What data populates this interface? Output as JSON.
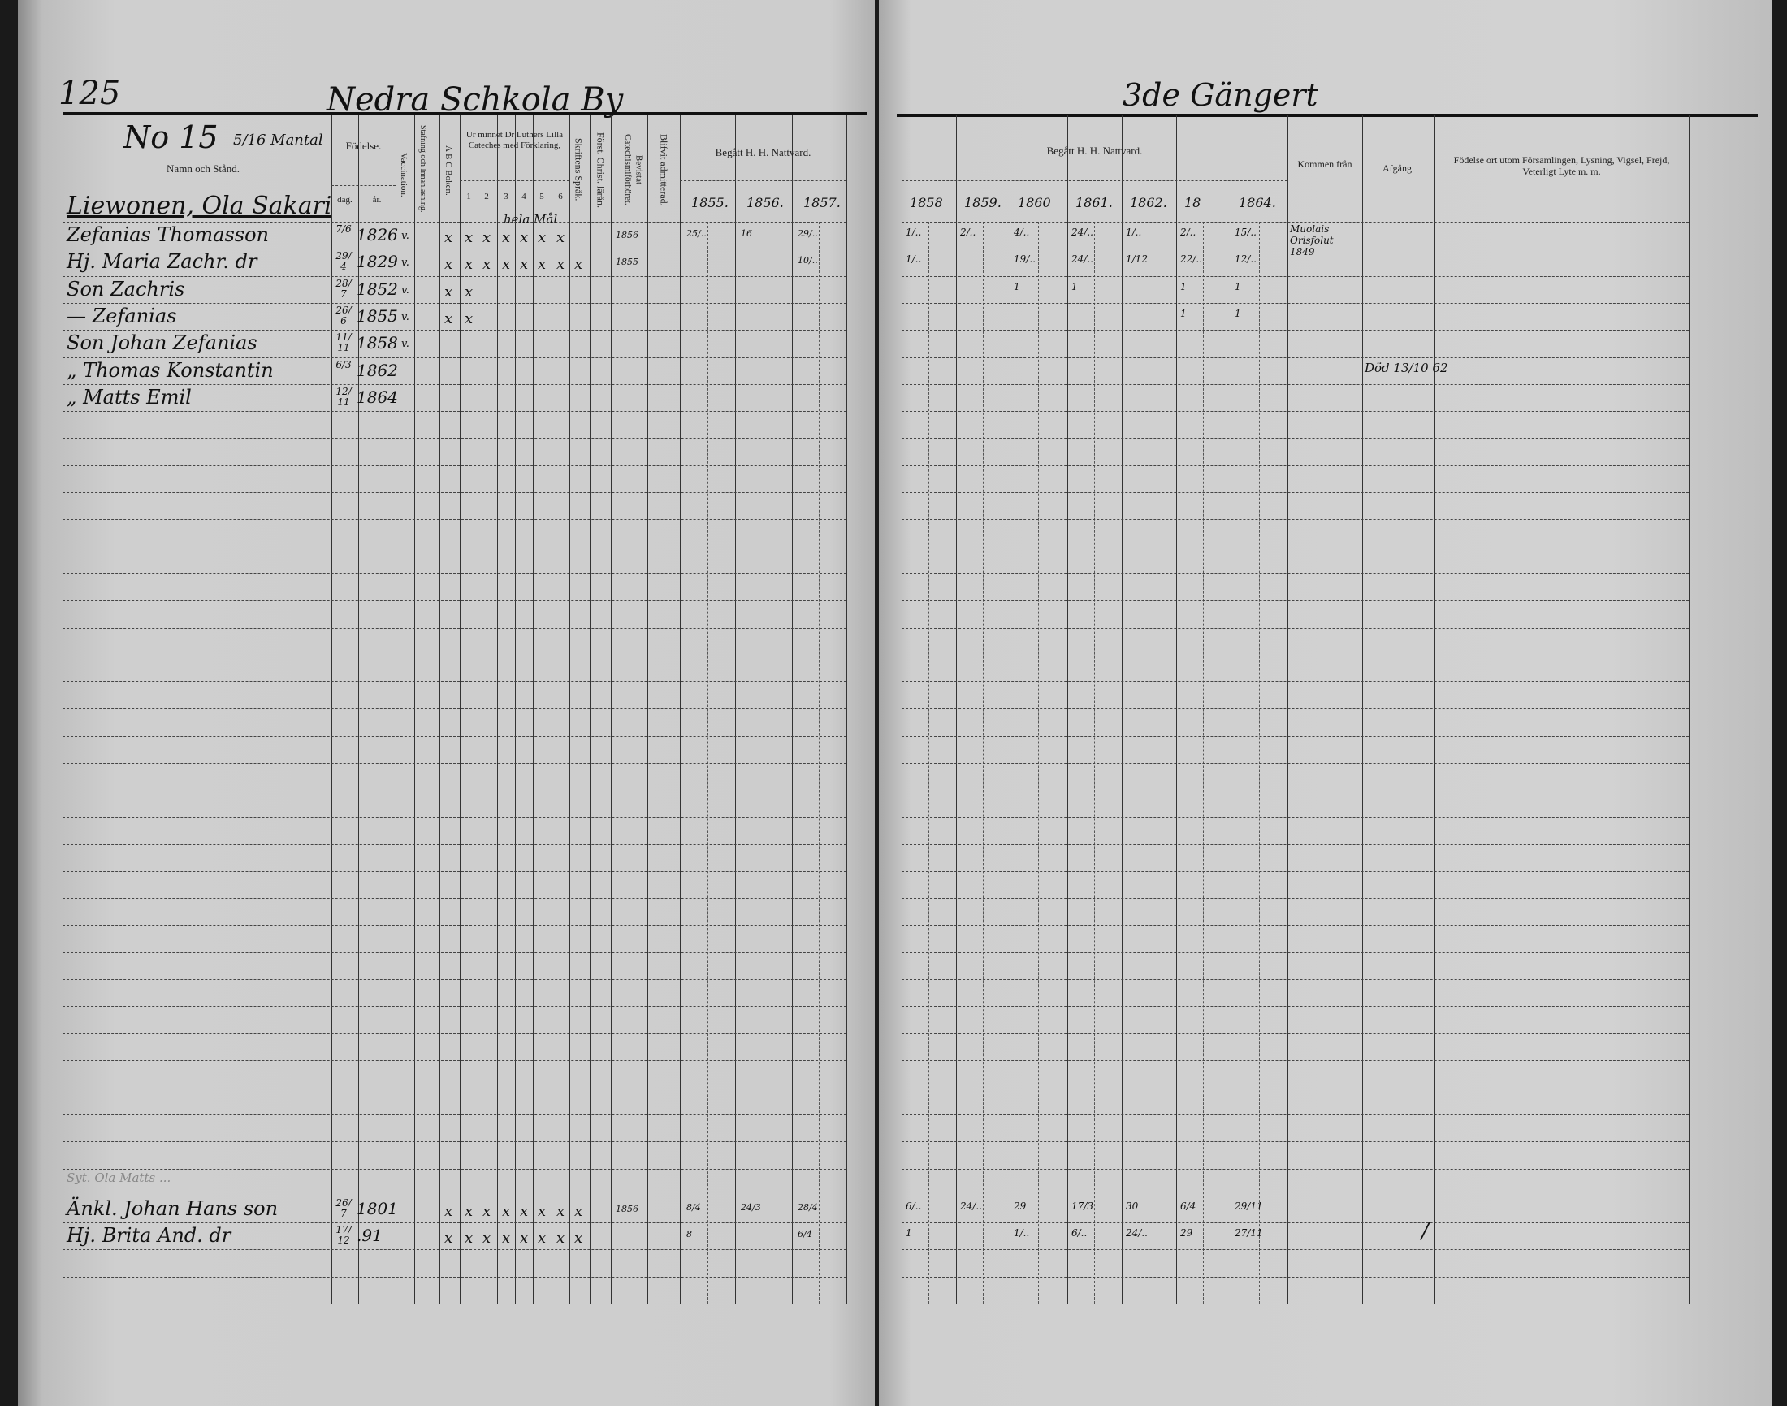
{
  "left_page": {
    "page_number": "125",
    "village_title": "Nedra Schkola By",
    "household_number": "No 15",
    "household_note": "5/16 Mantal",
    "household_head": "Liewonen, Ola Sakari",
    "headers": {
      "name": "Namn och Stånd.",
      "birth": "Födelse.",
      "birth_day": "dag.",
      "birth_year": "år.",
      "vaccination": "Vaccination.",
      "reading": "Stafning och Innanläsning.",
      "abc": "A B C Boken.",
      "catechism": "Ur minnet Dr Luthers Lilla Cateches med Förklaring,",
      "catechism_cols": [
        "1",
        "2",
        "3",
        "4",
        "5",
        "6"
      ],
      "scripture": "Skriftens Språk.",
      "christian": "Först. Christ. lärån.",
      "catechism_attended": "Bevistat Catechismiförhöret.",
      "admitted": "Blifvit admitterad.",
      "communion": "Begått H. H. Nattvard.",
      "communion_years": [
        "1855.",
        "1856.",
        "1857."
      ]
    },
    "entries": [
      {
        "row": 0,
        "name": "Zefanias Thomasson",
        "day": "7/6",
        "year": "1826",
        "vacc": "v.",
        "marks": [
          "x",
          "x",
          "x",
          "x",
          "x",
          "x",
          "x"
        ],
        "note": "hela Mål",
        "attended": "1856",
        "communion": [
          "25/..",
          "16",
          "29/.."
        ]
      },
      {
        "row": 1,
        "name": "Hj. Maria Zachr. dr",
        "day": "29/4",
        "year": "1829",
        "vacc": "v.",
        "marks": [
          "x",
          "x",
          "x",
          "x",
          "x",
          "x",
          "x",
          "x"
        ],
        "attended": "1855",
        "communion": [
          "",
          "",
          "10/.."
        ]
      },
      {
        "row": 2,
        "name": "Son Zachris",
        "day": "28/7",
        "year": "1852",
        "vacc": "v.",
        "marks": [
          "x",
          "x"
        ]
      },
      {
        "row": 3,
        "name": "— Zefanias",
        "day": "26/6",
        "year": "1855",
        "vacc": "v.",
        "marks": [
          "x",
          "x"
        ]
      },
      {
        "row": 4,
        "name": "Son Johan Zefanias",
        "day": "11/11",
        "year": "1858",
        "vacc": "v."
      },
      {
        "row": 5,
        "name": "„ Thomas Konstantin",
        "day": "6/3",
        "year": "1862"
      },
      {
        "row": 6,
        "name": "„ Matts Emil",
        "day": "12/11",
        "year": "1864"
      },
      {
        "row": 35,
        "name": "Syt. Ola Matts ...",
        "faint": true
      },
      {
        "row": 36,
        "name": "Änkl. Johan Hans son",
        "day": "26/7",
        "year": "1801",
        "marks": [
          "x",
          "x",
          "x",
          "x",
          "x",
          "x",
          "x",
          "x"
        ],
        "attended": "1856",
        "communion": [
          "8/4",
          "24/3",
          "28/4"
        ]
      },
      {
        "row": 37,
        "name": "Hj. Brita And. dr",
        "day": "17/12",
        "year": ".91",
        "marks": [
          "x",
          "x",
          "x",
          "x",
          "x",
          "x",
          "x",
          "x"
        ],
        "communion": [
          "8",
          "",
          "6/4"
        ]
      }
    ]
  },
  "right_page": {
    "title": "3de Gängert",
    "headers": {
      "communion": "Begått H. H. Nattvard.",
      "communion_years": [
        "1858",
        "1859.",
        "1860",
        "1861.",
        "1862.",
        "18",
        "1864."
      ],
      "came_from": "Kommen från",
      "departure": "Afgång.",
      "remarks": "Födelse ort utom Församlingen, Lysning, Vigsel, Frejd, Veterligt Lyte m. m."
    },
    "entries": [
      {
        "row": 0,
        "communion": [
          "1/..",
          "2/..",
          "4/..",
          "24/..",
          "1/..",
          "2/..",
          "15/.."
        ],
        "came_from": "Muolais Orisfolut 1849"
      },
      {
        "row": 1,
        "communion": [
          "1/..",
          "",
          "19/..",
          "24/..",
          "1/12",
          "22/..",
          "12/.."
        ]
      },
      {
        "row": 2,
        "communion": [
          "",
          "",
          "1",
          "1",
          "",
          "1",
          "1"
        ]
      },
      {
        "row": 3,
        "communion": [
          "",
          "",
          "",
          "",
          "",
          "1",
          "1"
        ]
      },
      {
        "row": 5,
        "departure": "Död 13/10 62"
      },
      {
        "row": 36,
        "communion": [
          "6/..",
          "24/..",
          "29",
          "17/3",
          "30",
          "6/4",
          "29/11"
        ]
      },
      {
        "row": 37,
        "communion": [
          "1",
          "",
          "1/..",
          "6/..",
          "24/..",
          "29",
          "27/11"
        ],
        "came_from": "",
        "remarks_mark": "/"
      }
    ]
  }
}
